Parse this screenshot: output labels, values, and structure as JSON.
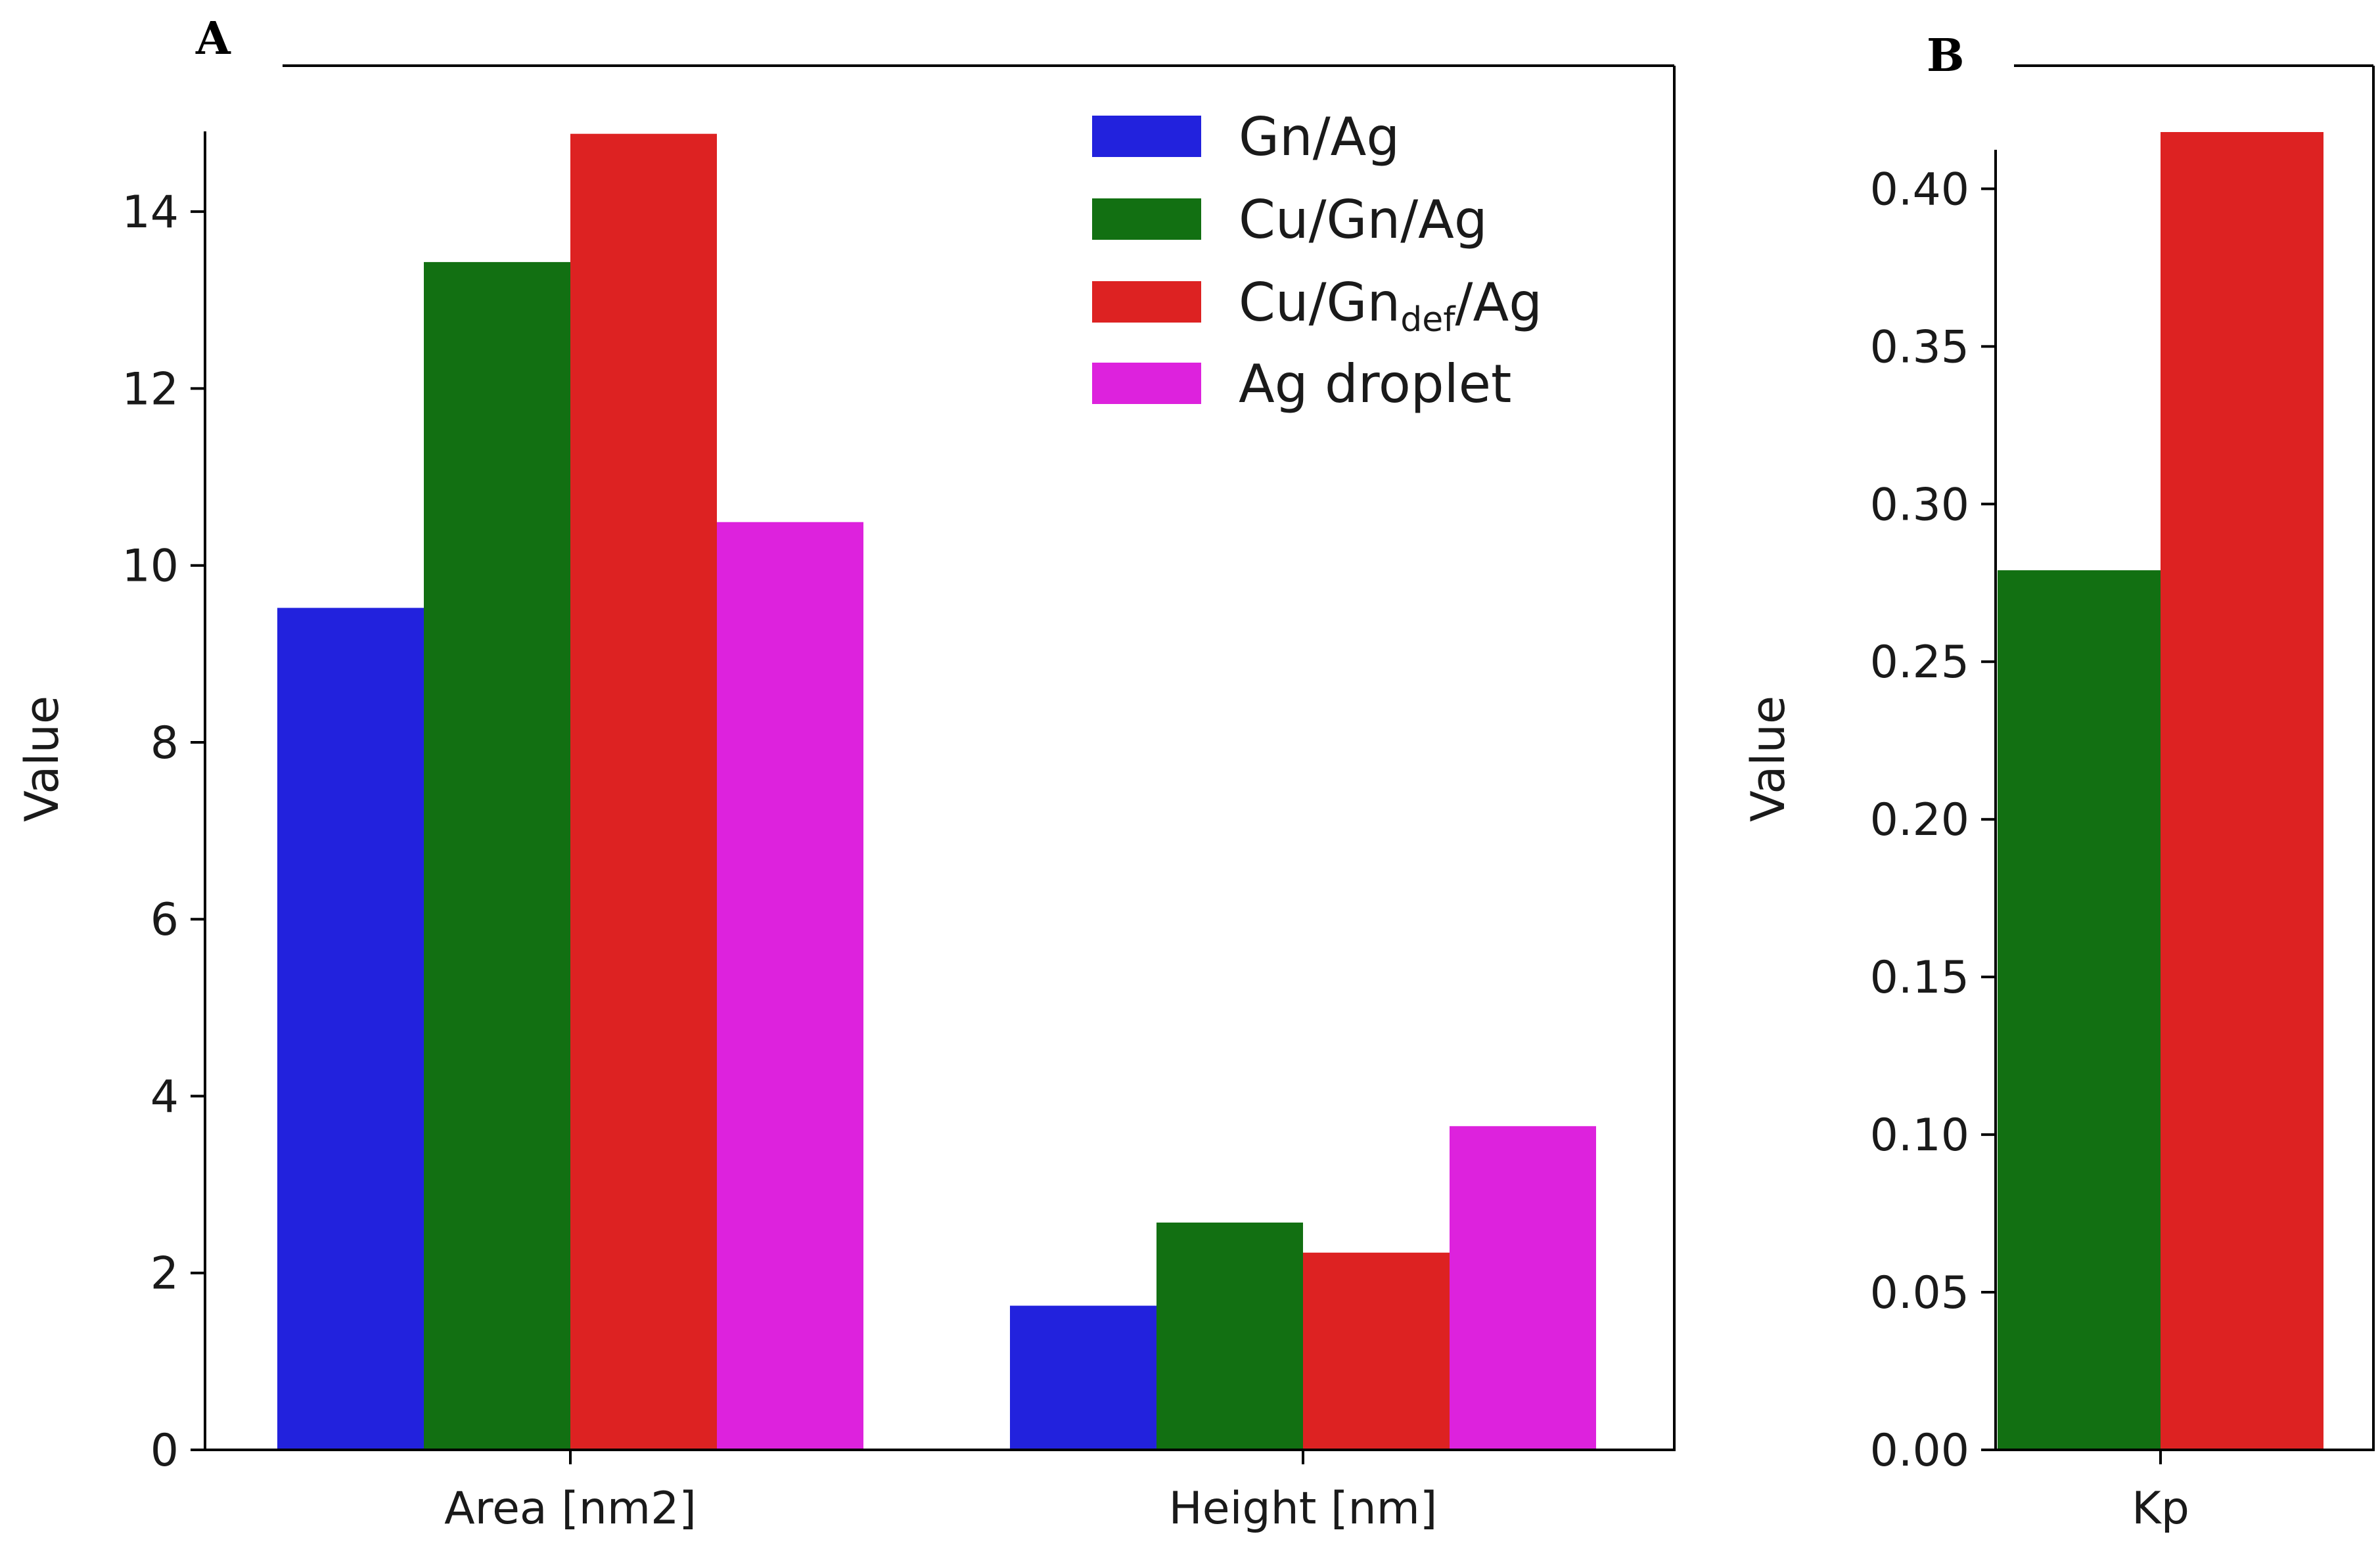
{
  "panel_labels": {
    "a": "A",
    "b": "B"
  },
  "chart_data": [
    {
      "type": "bar",
      "panel": "A",
      "categories": [
        "Area [nm2]",
        "Height [nm]"
      ],
      "series": [
        {
          "name": "Gn/Ag",
          "color": "#2222dd",
          "values": [
            9.52,
            1.63
          ]
        },
        {
          "name": "Cu/Gn/Ag",
          "color": "#127012",
          "values": [
            13.43,
            2.57
          ]
        },
        {
          "name": "Cu/Gn",
          "name_sub": "def",
          "name_suffix": "/Ag",
          "color": "#dd2222",
          "values": [
            14.88,
            2.23
          ]
        },
        {
          "name": "Ag droplet",
          "color": "#dd22dd",
          "values": [
            10.49,
            3.66
          ]
        }
      ],
      "ylabel": "Value",
      "xlabel": "",
      "ylim": [
        0,
        14.9
      ],
      "yticks": [
        0,
        2,
        4,
        6,
        8,
        10,
        12,
        14
      ],
      "ytick_labels": [
        "0",
        "2",
        "4",
        "6",
        "8",
        "10",
        "12",
        "14"
      ],
      "legend_position": "top-right",
      "grid": false
    },
    {
      "type": "bar",
      "panel": "B",
      "categories": [
        "Kp"
      ],
      "series": [
        {
          "name": "Cu/Gn/Ag",
          "color": "#127012",
          "values": [
            0.279
          ]
        },
        {
          "name": "Cu/Gn_def/Ag",
          "color": "#dd2222",
          "values": [
            0.418
          ]
        }
      ],
      "ylabel": "Value",
      "xlabel": "",
      "ylim": [
        0,
        0.418
      ],
      "yticks": [
        0,
        0.05,
        0.1,
        0.15,
        0.2,
        0.25,
        0.3,
        0.35,
        0.4
      ],
      "ytick_labels": [
        "0.00",
        "0.05",
        "0.10",
        "0.15",
        "0.20",
        "0.25",
        "0.30",
        "0.35",
        "0.40"
      ],
      "grid": false
    }
  ]
}
